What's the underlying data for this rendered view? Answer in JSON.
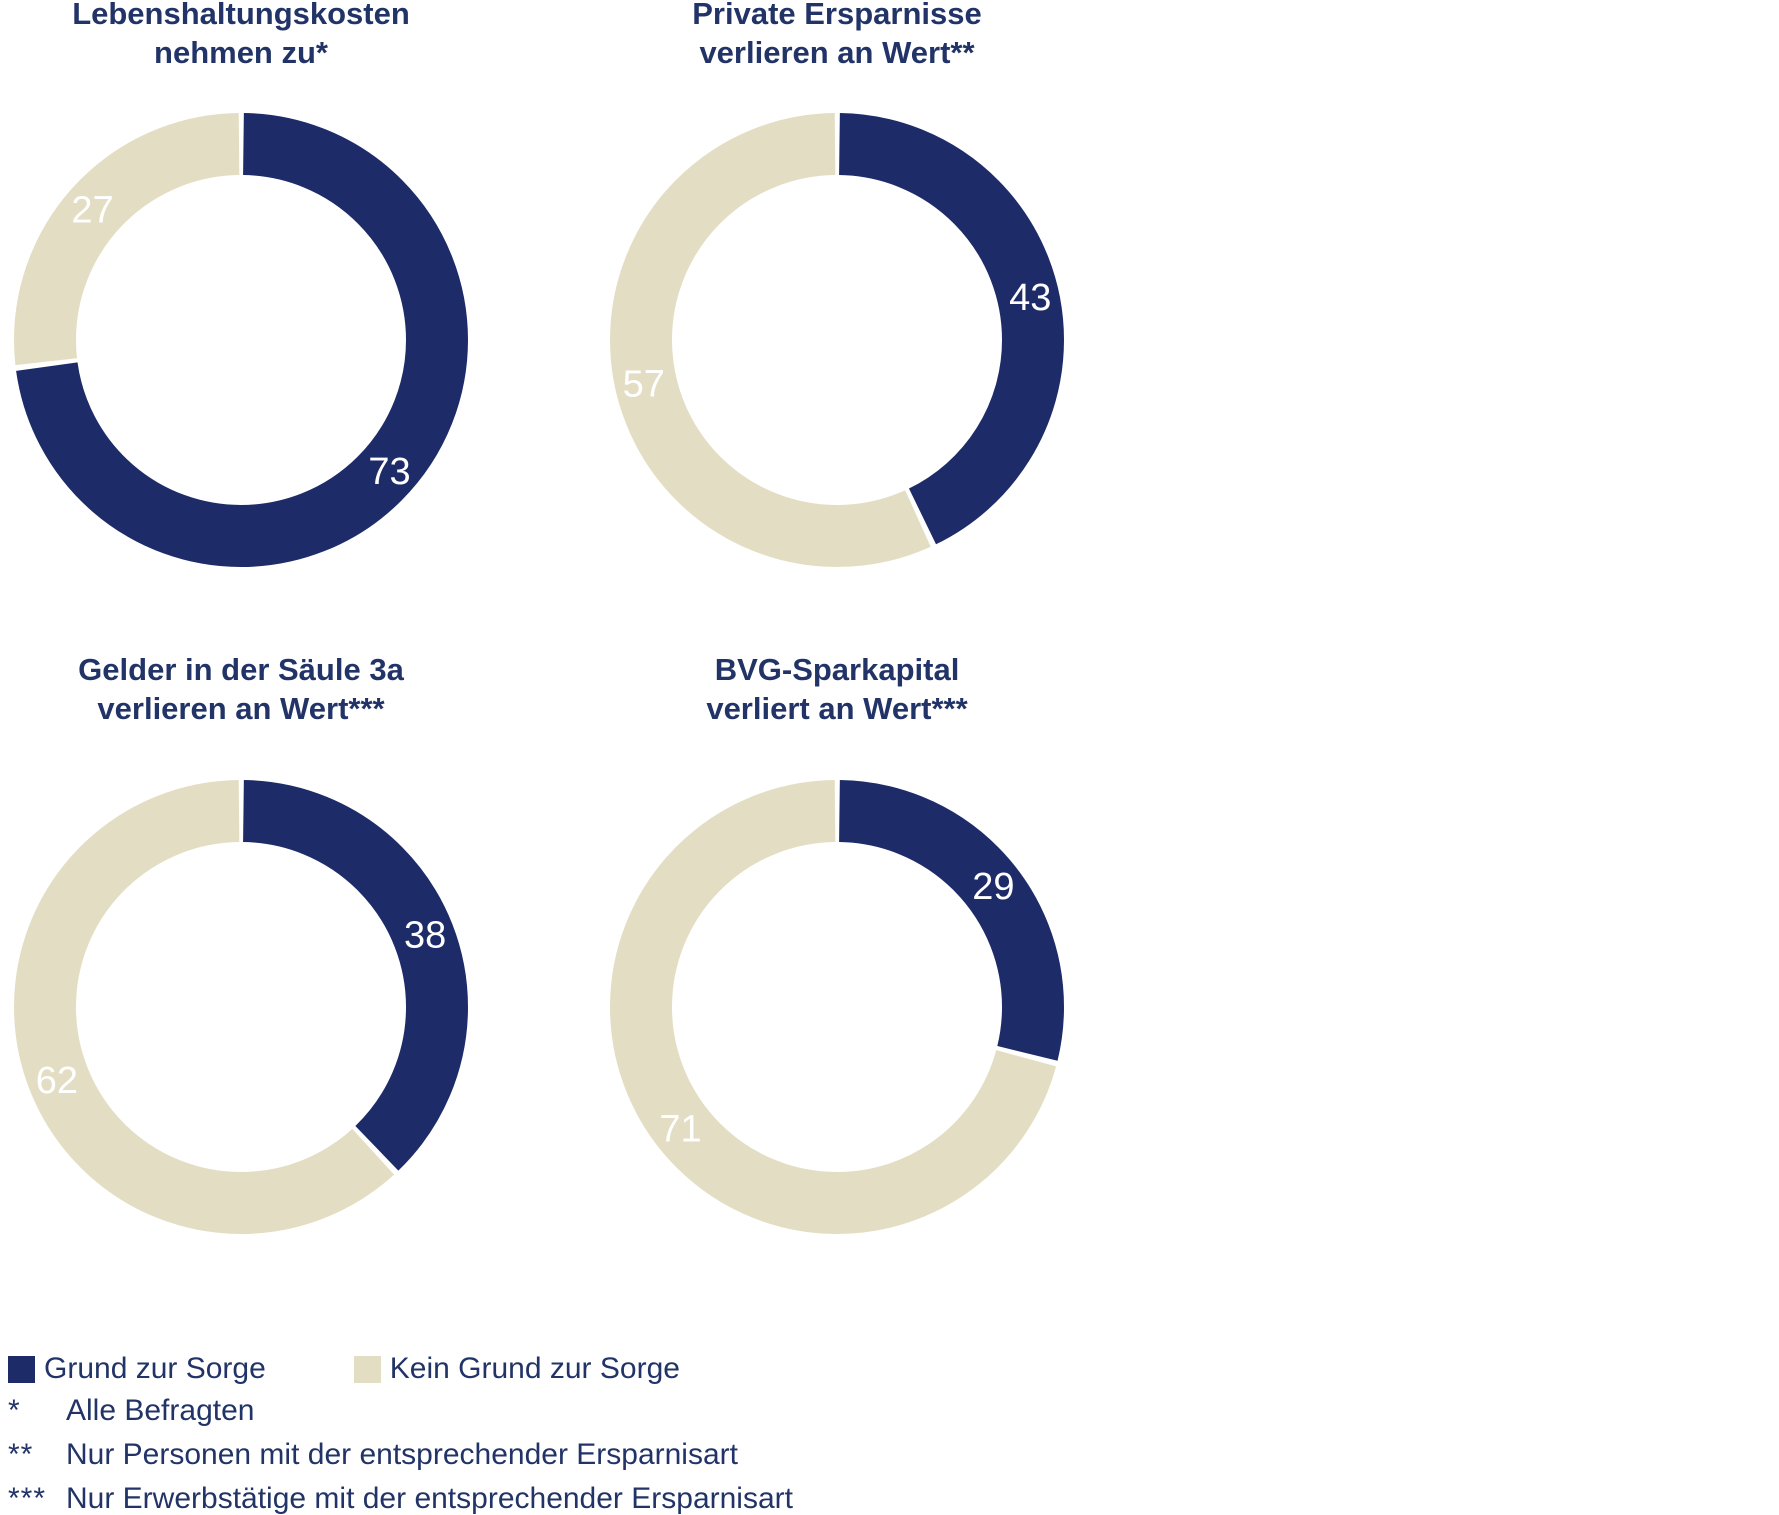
{
  "palette": {
    "navy": "#1e2b69",
    "beige": "#e3dec3",
    "text_navy": "#223467",
    "label_white": "#ffffff",
    "background": "#ffffff"
  },
  "chart_data": [
    {
      "type": "pie",
      "subtype": "donut",
      "title": "Lebenshaltungskosten nehmen zu*",
      "title_lines": [
        "Lebenshaltungskosten",
        "nehmen zu*"
      ],
      "labels": [
        "Grund zur Sorge",
        "Kein Grund zur Sorge"
      ],
      "values": [
        73,
        27
      ],
      "data_labels": [
        "73",
        "27"
      ],
      "colors": [
        "navy",
        "beige"
      ],
      "start_angle_deg": 0,
      "direction": "clockwise"
    },
    {
      "type": "pie",
      "subtype": "donut",
      "title": "Private Ersparnisse verlieren an Wert**",
      "title_lines": [
        "Private Ersparnisse",
        "verlieren an Wert**"
      ],
      "labels": [
        "Grund zur Sorge",
        "Kein Grund zur Sorge"
      ],
      "values": [
        43,
        57
      ],
      "data_labels": [
        "43",
        "57"
      ],
      "colors": [
        "navy",
        "beige"
      ],
      "start_angle_deg": 0,
      "direction": "clockwise"
    },
    {
      "type": "pie",
      "subtype": "donut",
      "title": "Gelder in der Säule 3a verlieren an Wert***",
      "title_lines": [
        "Gelder in der Säule 3a",
        "verlieren an Wert***"
      ],
      "labels": [
        "Grund zur Sorge",
        "Kein Grund zur Sorge"
      ],
      "values": [
        38,
        62
      ],
      "data_labels": [
        "38",
        "62"
      ],
      "colors": [
        "navy",
        "beige"
      ],
      "start_angle_deg": 0,
      "direction": "clockwise"
    },
    {
      "type": "pie",
      "subtype": "donut",
      "title": "BVG-Sparkapital verliert an Wert***",
      "title_lines": [
        "BVG-Sparkapital",
        "verliert an Wert***"
      ],
      "labels": [
        "Grund zur Sorge",
        "Kein Grund zur Sorge"
      ],
      "values": [
        29,
        71
      ],
      "data_labels": [
        "29",
        "71"
      ],
      "colors": [
        "navy",
        "beige"
      ],
      "start_angle_deg": 0,
      "direction": "clockwise"
    }
  ],
  "legend": {
    "items": [
      {
        "label": "Grund zur Sorge",
        "color": "navy"
      },
      {
        "label": "Kein Grund zur Sorge",
        "color": "beige"
      }
    ]
  },
  "footnotes": [
    {
      "marker": "*",
      "text": "Alle Befragten"
    },
    {
      "marker": "**",
      "text": "Nur Personen mit der entsprechender Ersparnisart"
    },
    {
      "marker": "***",
      "text": "Nur Erwerbstätige mit der entsprechender Ersparnisart"
    }
  ]
}
